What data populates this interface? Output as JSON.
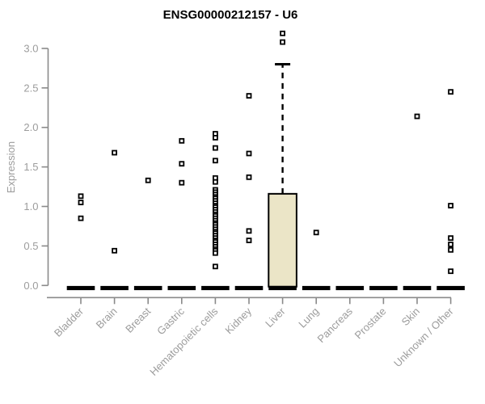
{
  "title": "ENSG00000212157 - U6",
  "colors": {
    "box_fill": "#ebe5c7",
    "box_stroke": "#000000",
    "axis_line": "#8a8a8a",
    "tick_label": "#9c9c9c",
    "point_stroke": "#000000",
    "point_fill": "#ffffff",
    "zero_bar": "#000000",
    "title_color": "#000000"
  },
  "chart_data": {
    "type": "boxplot-scatter",
    "title": "ENSG00000212157 - U6",
    "xlabel": "",
    "ylabel": "Expression",
    "ylim": [
      0,
      3.2
    ],
    "yticks": [
      0.0,
      0.5,
      1.0,
      1.5,
      2.0,
      2.5,
      3.0
    ],
    "ytick_labels": [
      "0.0",
      "0.5",
      "1.0",
      "1.5",
      "2.0",
      "2.5",
      "3.0"
    ],
    "grid": false,
    "legend": "none",
    "categories": [
      "Bladder",
      "Brain",
      "Breast",
      "Gastric",
      "Hematopoietic cells",
      "Kidney",
      "Liver",
      "Lung",
      "Pancreas",
      "Prostate",
      "Skin",
      "Unknown / Other"
    ],
    "groups": [
      {
        "label": "Bladder",
        "zero_bar": true,
        "points": [
          1.13,
          1.05,
          0.85
        ]
      },
      {
        "label": "Brain",
        "zero_bar": true,
        "points": [
          1.68,
          0.44
        ]
      },
      {
        "label": "Breast",
        "zero_bar": true,
        "points": [
          1.33
        ]
      },
      {
        "label": "Gastric",
        "zero_bar": true,
        "points": [
          1.83,
          1.54,
          1.3
        ]
      },
      {
        "label": "Hematopoietic cells",
        "zero_bar": true,
        "points": [
          1.92,
          1.87,
          1.74,
          1.58,
          1.36,
          1.31,
          1.21,
          1.18,
          1.15,
          1.12,
          1.1,
          1.07,
          1.04,
          1.01,
          0.99,
          0.96,
          0.93,
          0.9,
          0.88,
          0.85,
          0.82,
          0.79,
          0.77,
          0.74,
          0.71,
          0.68,
          0.66,
          0.63,
          0.6,
          0.57,
          0.55,
          0.52,
          0.49,
          0.46,
          0.44,
          0.41,
          0.24
        ]
      },
      {
        "label": "Kidney",
        "zero_bar": true,
        "points": [
          2.4,
          1.67,
          1.37,
          0.69,
          0.57
        ]
      },
      {
        "label": "Liver",
        "zero_bar": true,
        "box": {
          "q1": 0.0,
          "median": 0.0,
          "q3": 1.16,
          "whisker_high": 2.8
        },
        "points": [
          3.19,
          3.08
        ]
      },
      {
        "label": "Lung",
        "zero_bar": true,
        "points": [
          0.67
        ]
      },
      {
        "label": "Pancreas",
        "zero_bar": true,
        "points": []
      },
      {
        "label": "Prostate",
        "zero_bar": true,
        "points": []
      },
      {
        "label": "Skin",
        "zero_bar": true,
        "points": [
          2.14
        ]
      },
      {
        "label": "Unknown / Other",
        "zero_bar": true,
        "points": [
          2.45,
          1.01,
          0.6,
          0.52,
          0.45,
          0.18
        ]
      }
    ]
  }
}
